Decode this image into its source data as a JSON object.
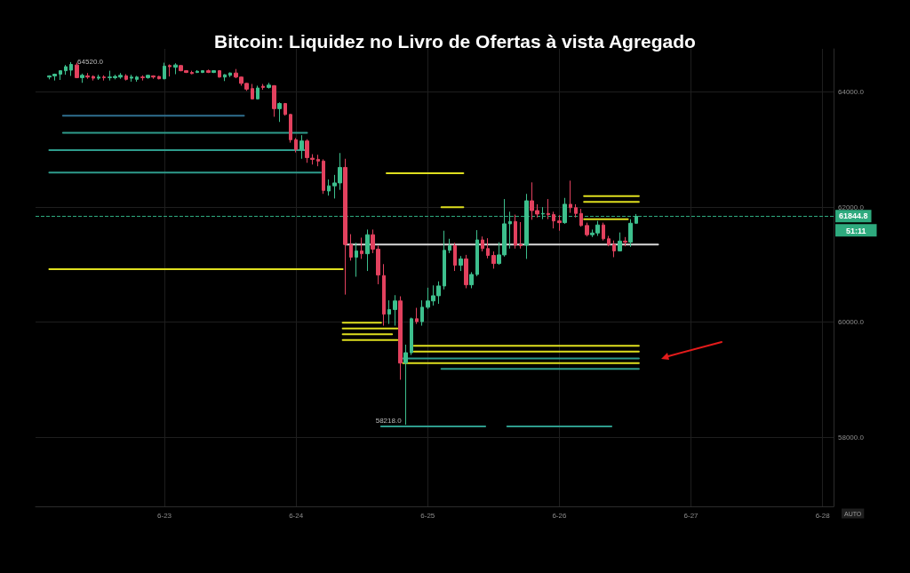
{
  "chart_data": {
    "type": "candlestick",
    "title": "Bitcoin: Liquidez no Livro de Ofertas à vista Agregado",
    "xlim": [
      "--06-22T00:30",
      "--06-28T02:00"
    ],
    "xticks": [
      {
        "value": "--06-23",
        "label": "6-23"
      },
      {
        "value": "--06-24",
        "label": "6-24"
      },
      {
        "value": "--06-25",
        "label": "6-25"
      },
      {
        "value": "--06-26",
        "label": "6-26"
      },
      {
        "value": "--06-27",
        "label": "6-27"
      },
      {
        "value": "--06-28",
        "label": "6-28"
      }
    ],
    "ylim": [
      56800,
      64750
    ],
    "yticks": [
      {
        "value": 58000,
        "label": "58000.0"
      },
      {
        "value": 60000,
        "label": "60000.0"
      },
      {
        "value": 62000,
        "label": "62000.0"
      },
      {
        "value": 64000,
        "label": "64000.0"
      }
    ],
    "grid": true,
    "series": [
      {
        "type": "candlestick",
        "x": [
          "--06-22T03:00",
          "--06-22T04:00",
          "--06-22T05:00",
          "--06-22T06:00",
          "--06-22T07:00",
          "--06-22T08:00",
          "--06-22T09:00",
          "--06-22T10:00",
          "--06-22T11:00",
          "--06-22T12:00",
          "--06-22T13:00",
          "--06-22T14:00",
          "--06-22T15:00",
          "--06-22T16:00",
          "--06-22T17:00",
          "--06-22T18:00",
          "--06-22T19:00",
          "--06-22T20:00",
          "--06-22T21:00",
          "--06-22T22:00",
          "--06-22T23:00",
          "--06-23T00:00",
          "--06-23T01:00",
          "--06-23T02:00",
          "--06-23T03:00",
          "--06-23T04:00",
          "--06-23T05:00",
          "--06-23T06:00",
          "--06-23T07:00",
          "--06-23T08:00",
          "--06-23T09:00",
          "--06-23T10:00",
          "--06-23T11:00",
          "--06-23T12:00",
          "--06-23T13:00",
          "--06-23T14:00",
          "--06-23T15:00",
          "--06-23T16:00",
          "--06-23T17:00",
          "--06-23T18:00",
          "--06-23T19:00",
          "--06-23T20:00",
          "--06-23T21:00",
          "--06-23T22:00",
          "--06-23T23:00",
          "--06-24T00:00",
          "--06-24T01:00",
          "--06-24T02:00",
          "--06-24T03:00",
          "--06-24T04:00",
          "--06-24T05:00",
          "--06-24T06:00",
          "--06-24T07:00",
          "--06-24T08:00",
          "--06-24T09:00",
          "--06-24T10:00",
          "--06-24T11:00",
          "--06-24T12:00",
          "--06-24T13:00",
          "--06-24T14:00",
          "--06-24T15:00",
          "--06-24T16:00",
          "--06-24T17:00",
          "--06-24T18:00",
          "--06-24T19:00",
          "--06-24T20:00",
          "--06-24T21:00",
          "--06-24T22:00",
          "--06-24T23:00",
          "--06-25T00:00",
          "--06-25T01:00",
          "--06-25T02:00",
          "--06-25T03:00",
          "--06-25T04:00",
          "--06-25T05:00",
          "--06-25T06:00",
          "--06-25T07:00",
          "--06-25T08:00",
          "--06-25T09:00",
          "--06-25T10:00",
          "--06-25T11:00",
          "--06-25T12:00",
          "--06-25T13:00",
          "--06-25T14:00",
          "--06-25T15:00",
          "--06-25T16:00",
          "--06-25T17:00",
          "--06-25T18:00",
          "--06-25T19:00",
          "--06-25T20:00",
          "--06-25T21:00",
          "--06-25T22:00",
          "--06-25T23:00",
          "--06-26T00:00",
          "--06-26T01:00",
          "--06-26T02:00",
          "--06-26T03:00",
          "--06-26T04:00",
          "--06-26T05:00",
          "--06-26T06:00",
          "--06-26T07:00",
          "--06-26T08:00",
          "--06-26T09:00",
          "--06-26T10:00",
          "--06-26T11:00",
          "--06-26T12:00",
          "--06-26T13:00",
          "--06-26T14:00"
        ],
        "ohlc": [
          [
            64260,
            64290,
            64220,
            64280
          ],
          [
            64280,
            64320,
            64200,
            64310
          ],
          [
            64310,
            64380,
            64210,
            64370
          ],
          [
            64370,
            64470,
            64300,
            64440
          ],
          [
            64380,
            64520,
            64280,
            64480
          ],
          [
            64470,
            64510,
            64240,
            64250
          ],
          [
            64250,
            64320,
            64160,
            64290
          ],
          [
            64280,
            64330,
            64230,
            64260
          ],
          [
            64270,
            64290,
            64200,
            64240
          ],
          [
            64240,
            64300,
            64210,
            64260
          ],
          [
            64260,
            64290,
            64200,
            64250
          ],
          [
            64250,
            64370,
            64200,
            64260
          ],
          [
            64250,
            64300,
            64220,
            64270
          ],
          [
            64260,
            64330,
            64230,
            64290
          ],
          [
            64280,
            64310,
            64200,
            64220
          ],
          [
            64240,
            64300,
            64180,
            64260
          ],
          [
            64220,
            64280,
            64180,
            64260
          ],
          [
            64260,
            64290,
            64200,
            64250
          ],
          [
            64250,
            64300,
            64230,
            64290
          ],
          [
            64280,
            64290,
            64230,
            64260
          ],
          [
            64270,
            64280,
            64220,
            64230
          ],
          [
            64230,
            64510,
            64220,
            64450
          ],
          [
            64460,
            64480,
            64270,
            64440
          ],
          [
            64430,
            64500,
            64310,
            64470
          ],
          [
            64460,
            64470,
            64360,
            64370
          ],
          [
            64370,
            64380,
            64330,
            64340
          ],
          [
            64340,
            64370,
            64310,
            64320
          ],
          [
            64340,
            64380,
            64330,
            64360
          ],
          [
            64340,
            64380,
            64330,
            64370
          ],
          [
            64370,
            64390,
            64330,
            64340
          ],
          [
            64340,
            64380,
            64330,
            64370
          ],
          [
            64370,
            64380,
            64250,
            64260
          ],
          [
            64260,
            64310,
            64190,
            64300
          ],
          [
            64290,
            64340,
            64260,
            64330
          ],
          [
            64330,
            64400,
            64240,
            64260
          ],
          [
            64260,
            64270,
            64110,
            64150
          ],
          [
            64150,
            64160,
            64020,
            64050
          ],
          [
            64060,
            64140,
            63870,
            63880
          ],
          [
            63880,
            64110,
            63870,
            64070
          ],
          [
            64100,
            64140,
            64040,
            64080
          ],
          [
            64080,
            64160,
            64060,
            64120
          ],
          [
            64110,
            64120,
            63570,
            63710
          ],
          [
            63710,
            63820,
            63480,
            63800
          ],
          [
            63800,
            63810,
            63590,
            63610
          ],
          [
            63610,
            63620,
            63120,
            63170
          ],
          [
            63170,
            63200,
            62950,
            63000
          ],
          [
            63000,
            63250,
            62840,
            63150
          ],
          [
            63150,
            63180,
            62770,
            62860
          ],
          [
            62850,
            62920,
            62740,
            62830
          ],
          [
            62830,
            62910,
            62710,
            62800
          ],
          [
            62800,
            62830,
            62230,
            62290
          ],
          [
            62280,
            62480,
            62200,
            62370
          ],
          [
            62370,
            62560,
            62150,
            62420
          ],
          [
            62420,
            62940,
            62300,
            62690
          ],
          [
            62690,
            62840,
            60480,
            61350
          ],
          [
            61350,
            61530,
            61070,
            61130
          ],
          [
            61130,
            61380,
            60790,
            61240
          ],
          [
            61240,
            61470,
            61100,
            61190
          ],
          [
            61190,
            61610,
            60890,
            61520
          ],
          [
            61520,
            61610,
            61200,
            61270
          ],
          [
            61270,
            61330,
            60660,
            60820
          ],
          [
            60810,
            61010,
            59940,
            60140
          ],
          [
            60140,
            60380,
            59970,
            60220
          ],
          [
            60220,
            60470,
            59940,
            60370
          ],
          [
            60370,
            60450,
            59000,
            59290
          ],
          [
            59290,
            59610,
            58218,
            59470
          ],
          [
            59470,
            60080,
            59430,
            60060
          ],
          [
            60060,
            60250,
            59970,
            60010
          ],
          [
            60010,
            60380,
            59940,
            60260
          ],
          [
            60260,
            60600,
            60230,
            60370
          ],
          [
            60370,
            60640,
            60290,
            60460
          ],
          [
            60460,
            60710,
            60320,
            60630
          ],
          [
            60630,
            61590,
            60570,
            61250
          ],
          [
            61250,
            61450,
            61200,
            61330
          ],
          [
            61330,
            61380,
            60890,
            60990
          ],
          [
            60990,
            61150,
            60890,
            61100
          ],
          [
            61100,
            61170,
            60590,
            60650
          ],
          [
            60650,
            60870,
            60590,
            60830
          ],
          [
            60830,
            61600,
            60800,
            61430
          ],
          [
            61430,
            61490,
            61230,
            61280
          ],
          [
            61280,
            61460,
            61110,
            61160
          ],
          [
            61160,
            61230,
            60930,
            61020
          ],
          [
            61020,
            61390,
            61000,
            61170
          ],
          [
            61170,
            62140,
            61140,
            61710
          ],
          [
            61710,
            61920,
            61280,
            61750
          ],
          [
            61750,
            61870,
            61280,
            61340
          ],
          [
            61350,
            61740,
            61280,
            61330
          ],
          [
            61340,
            62230,
            61100,
            62110
          ],
          [
            62110,
            62430,
            61780,
            61940
          ],
          [
            61940,
            62050,
            61820,
            61880
          ],
          [
            61880,
            62000,
            61790,
            61890
          ],
          [
            61890,
            62140,
            61790,
            61870
          ],
          [
            61870,
            61920,
            61630,
            61760
          ],
          [
            61760,
            61860,
            61590,
            61730
          ],
          [
            61730,
            62160,
            61710,
            62050
          ],
          [
            62050,
            62460,
            61900,
            61990
          ],
          [
            61990,
            62050,
            61820,
            61890
          ],
          [
            61890,
            61970,
            61660,
            61680
          ],
          [
            61680,
            61730,
            61490,
            61520
          ],
          [
            61520,
            61610,
            61480,
            61550
          ],
          [
            61550,
            61760,
            61500,
            61690
          ],
          [
            61690,
            61730,
            61420,
            61450
          ],
          [
            61450,
            61500,
            61320,
            61350
          ],
          [
            61350,
            61420,
            61130,
            61240
          ],
          [
            61240,
            61560,
            61230,
            61410
          ],
          [
            61410,
            61480,
            61320,
            61390
          ],
          [
            61390,
            61790,
            61310,
            61720
          ],
          [
            61720,
            61880,
            61710,
            61840
          ]
        ],
        "colors": [
          "#3dbf8d",
          "#3dbf8d",
          "#3dbf8d",
          "#3dbf8d",
          "#3dbf8d",
          "#e2415e",
          "#3dbf8d",
          "#e2415e",
          "#e2415e",
          "#3dbf8d",
          "#e2415e",
          "#3dbf8d",
          "#3dbf8d",
          "#3dbf8d",
          "#e2415e",
          "#3dbf8d",
          "#3dbf8d",
          "#e2415e",
          "#3dbf8d",
          "#e2415e",
          "#e2415e",
          "#3dbf8d",
          "#e2415e",
          "#3dbf8d",
          "#e2415e",
          "#e2415e",
          "#e2415e",
          "#3dbf8d",
          "#3dbf8d",
          "#e2415e",
          "#3dbf8d",
          "#e2415e",
          "#3dbf8d",
          "#3dbf8d",
          "#e2415e",
          "#e2415e",
          "#e2415e",
          "#e2415e",
          "#3dbf8d",
          "#e2415e",
          "#3dbf8d",
          "#e2415e",
          "#3dbf8d",
          "#e2415e",
          "#e2415e",
          "#e2415e",
          "#3dbf8d",
          "#e2415e",
          "#e2415e",
          "#e2415e",
          "#e2415e",
          "#3dbf8d",
          "#3dbf8d",
          "#3dbf8d",
          "#e2415e",
          "#e2415e",
          "#3dbf8d",
          "#e2415e",
          "#3dbf8d",
          "#e2415e",
          "#e2415e",
          "#e2415e",
          "#3dbf8d",
          "#3dbf8d",
          "#e2415e",
          "#3dbf8d",
          "#3dbf8d",
          "#e2415e",
          "#3dbf8d",
          "#3dbf8d",
          "#3dbf8d",
          "#3dbf8d",
          "#3dbf8d",
          "#3dbf8d",
          "#e2415e",
          "#3dbf8d",
          "#e2415e",
          "#3dbf8d",
          "#3dbf8d",
          "#e2415e",
          "#e2415e",
          "#e2415e",
          "#3dbf8d",
          "#3dbf8d",
          "#3dbf8d",
          "#e2415e",
          "#e2415e",
          "#3dbf8d",
          "#e2415e",
          "#e2415e",
          "#3dbf8d",
          "#e2415e",
          "#e2415e",
          "#e2415e",
          "#3dbf8d",
          "#e2415e",
          "#e2415e",
          "#e2415e",
          "#e2415e",
          "#3dbf8d",
          "#3dbf8d",
          "#e2415e",
          "#e2415e",
          "#e2415e",
          "#3dbf8d",
          "#e2415e",
          "#3dbf8d",
          "#3dbf8d"
        ]
      },
      {
        "type": "line",
        "color": "#dfdf1f",
        "x": [
          "--06-24T21:30",
          "--06-26T14:30"
        ],
        "values": [
          59590,
          59590
        ]
      },
      {
        "type": "line",
        "color": "#dfdf1f",
        "x": [
          "--06-24T21:30",
          "--06-26T14:30"
        ],
        "values": [
          59490,
          59490
        ]
      },
      {
        "type": "line",
        "color": "#dfdf1f",
        "x": [
          "--06-24T19:30",
          "--06-26T14:30"
        ],
        "values": [
          59290,
          59290
        ]
      },
      {
        "type": "line",
        "color": "#dfdf1f",
        "x": [
          "--06-24T08:30",
          "--06-24T18:30"
        ],
        "values": [
          59890,
          59890
        ]
      },
      {
        "type": "line",
        "color": "#dfdf1f",
        "x": [
          "--06-24T08:30",
          "--06-24T17:30"
        ],
        "values": [
          59790,
          59790
        ]
      },
      {
        "type": "line",
        "color": "#dfdf1f",
        "x": [
          "--06-24T08:30",
          "--06-24T18:30"
        ],
        "values": [
          59690,
          59690
        ]
      },
      {
        "type": "line",
        "color": "#dfdf1f",
        "x": [
          "--06-24T08:30",
          "--06-24T15:30"
        ],
        "values": [
          59990,
          59990
        ]
      },
      {
        "type": "line",
        "color": "#dfdf1f",
        "x": [
          "--06-22T03:00",
          "--06-24T08:30"
        ],
        "values": [
          60920,
          60920
        ]
      },
      {
        "type": "line",
        "color": "#dfdf1f",
        "x": [
          "--06-26T04:30",
          "--06-26T14:30"
        ],
        "values": [
          62190,
          62190
        ]
      },
      {
        "type": "line",
        "color": "#dfdf1f",
        "x": [
          "--06-26T04:30",
          "--06-26T14:30"
        ],
        "values": [
          62090,
          62090
        ]
      },
      {
        "type": "line",
        "color": "#dfdf1f",
        "x": [
          "--06-26T04:30",
          "--06-26T12:30"
        ],
        "values": [
          61790,
          61790
        ]
      },
      {
        "type": "line",
        "color": "#dfdf1f",
        "x": [
          "--06-24T16:30",
          "--06-25T06:30"
        ],
        "values": [
          62590,
          62590
        ]
      },
      {
        "type": "line",
        "color": "#dfdf1f",
        "x": [
          "--06-25T02:30",
          "--06-25T06:30"
        ],
        "values": [
          62000,
          62000
        ]
      },
      {
        "type": "line",
        "color": "#d9d9d9",
        "x": [
          "--06-24T09:00",
          "--06-26T18:00"
        ],
        "values": [
          61350,
          61350
        ]
      },
      {
        "type": "line",
        "color": "#2e9c8c",
        "x": [
          "--06-24T19:30",
          "--06-26T14:30"
        ],
        "values": [
          59370,
          59370
        ]
      },
      {
        "type": "line",
        "color": "#2e9c8c",
        "x": [
          "--06-25T02:30",
          "--06-26T14:30"
        ],
        "values": [
          59190,
          59190
        ]
      },
      {
        "type": "line",
        "color": "#2e9c8c",
        "x": [
          "--06-24T15:30",
          "--06-25T10:30"
        ],
        "values": [
          58190,
          58190
        ]
      },
      {
        "type": "line",
        "color": "#2e9c8c",
        "x": [
          "--06-25T14:30",
          "--06-26T09:30"
        ],
        "values": [
          58190,
          58190
        ]
      },
      {
        "type": "line",
        "color": "#2e9c8c",
        "x": [
          "--06-22T05:30",
          "--06-24T02:00"
        ],
        "values": [
          63290,
          63290
        ]
      },
      {
        "type": "line",
        "color": "#2e9c8c",
        "x": [
          "--06-22T03:00",
          "--06-24T02:00"
        ],
        "values": [
          62990,
          62990
        ]
      },
      {
        "type": "line",
        "color": "#2e9c8c",
        "x": [
          "--06-22T03:00",
          "--06-24T04:30"
        ],
        "values": [
          62600,
          62600
        ]
      },
      {
        "type": "line",
        "color": "#2f6f8f",
        "x": [
          "--06-22T05:30",
          "--06-23T14:30"
        ],
        "values": [
          63590,
          63590
        ]
      }
    ],
    "ref_lines": [
      {
        "axis": "y",
        "value": 61844.8,
        "label": "61844.8",
        "color": "#2eaa7e",
        "line_style": "dashed"
      }
    ],
    "annotations": [
      "51:11",
      "AUTO",
      {
        "text": "64520.0",
        "x": "--06-22T07:00",
        "y": 64520
      },
      {
        "text": "58218.0",
        "x": "--06-24T20:00",
        "y": 58218
      }
    ]
  }
}
